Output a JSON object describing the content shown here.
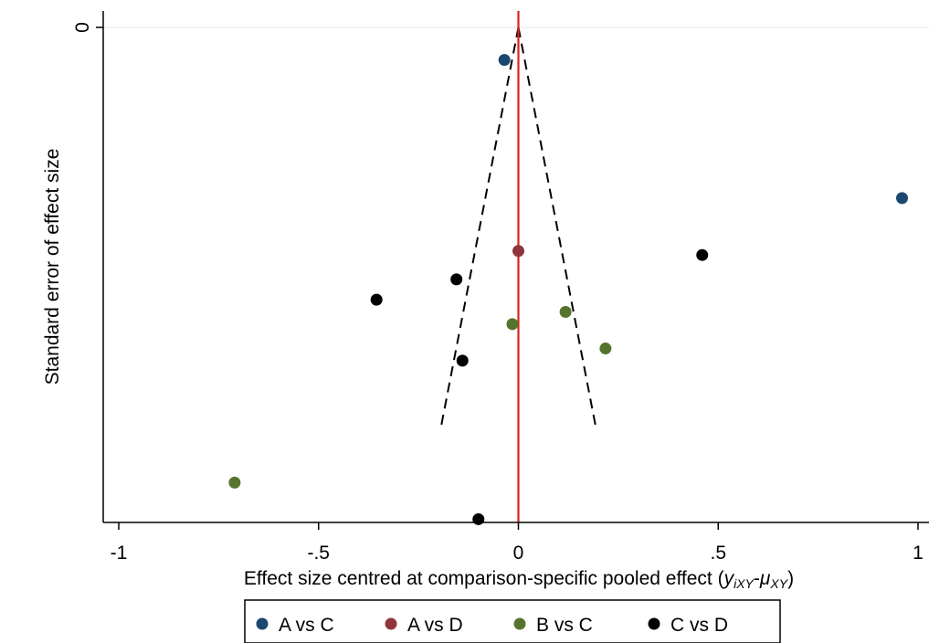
{
  "chart_data": {
    "type": "scatter",
    "title": "",
    "xlabel_parts": [
      "Effect size centred at comparison-specific pooled effect (",
      "y",
      "iXY",
      "-",
      "μ",
      "XY",
      ")"
    ],
    "ylabel": "Standard error of effect size",
    "xlim": [
      -1,
      1
    ],
    "ylim_reversed": true,
    "x_ticks": [
      {
        "value": -1,
        "label": "-1"
      },
      {
        "value": -0.5,
        "label": "-.5"
      },
      {
        "value": 0,
        "label": "0"
      },
      {
        "value": 0.5,
        "label": ".5"
      },
      {
        "value": 1,
        "label": "1"
      }
    ],
    "y_ticks": [
      {
        "value": 0,
        "label": "0"
      }
    ],
    "grid": "horizontal line at y=0 only",
    "reference_line": {
      "x": 0,
      "color": "#e0201e"
    },
    "funnel": {
      "apex_se": 0,
      "bottom_se": 0.099,
      "half_width_at_bottom": 0.195,
      "style": "dashed",
      "color": "#000000"
    },
    "series": [
      {
        "name": "A vs C",
        "color": "#1a476f",
        "points": [
          [
            -0.035,
            0.008
          ],
          [
            0.96,
            0.042
          ]
        ]
      },
      {
        "name": "A vs D",
        "color": "#90353b",
        "points": [
          [
            0.0,
            0.055
          ]
        ]
      },
      {
        "name": "B vs C",
        "color": "#55752f",
        "points": [
          [
            -0.015,
            0.073
          ],
          [
            0.118,
            0.07
          ],
          [
            0.218,
            0.079
          ],
          [
            -0.71,
            0.112
          ]
        ]
      },
      {
        "name": "C vs D",
        "color": "#000000",
        "points": [
          [
            0.46,
            0.056
          ],
          [
            -0.155,
            0.062
          ],
          [
            -0.355,
            0.067
          ],
          [
            -0.14,
            0.082
          ],
          [
            -0.1,
            0.121
          ]
        ]
      }
    ],
    "legend": {
      "position": "bottom",
      "entries": [
        "A vs C",
        "A vs D",
        "B vs C",
        "C vs D"
      ]
    }
  }
}
